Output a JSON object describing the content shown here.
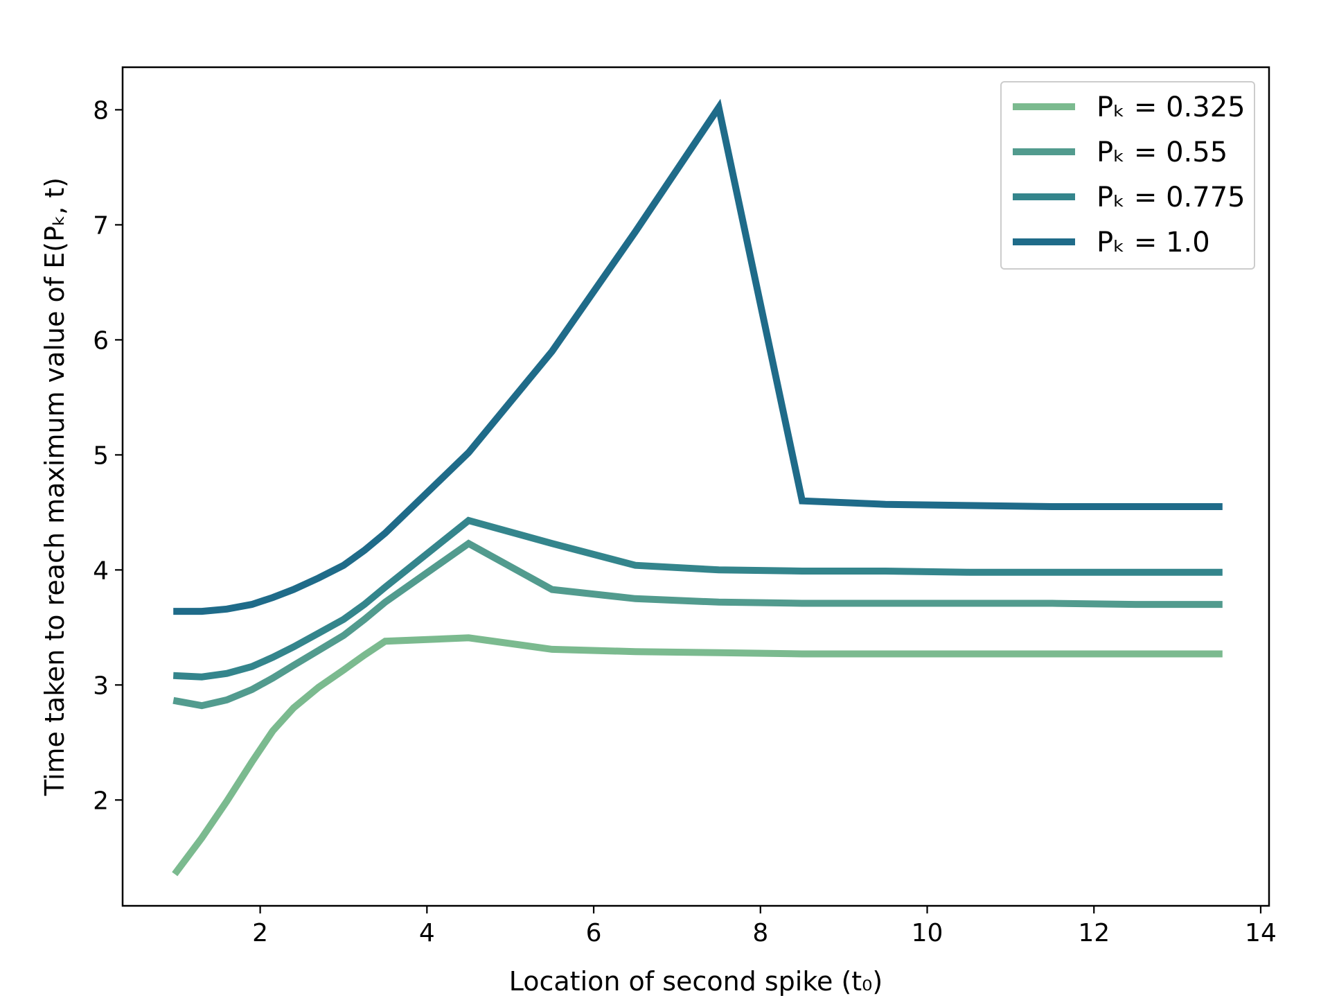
{
  "chart_data": {
    "type": "line",
    "xlabel": "Location of second spike (t₀)",
    "ylabel": "Time taken to reach maximum value of E(Pₖ, t)",
    "xlim": [
      0.35,
      14.1
    ],
    "ylim": [
      1.08,
      8.37
    ],
    "xticks": [
      2,
      4,
      6,
      8,
      10,
      12,
      14
    ],
    "yticks": [
      2,
      3,
      4,
      5,
      6,
      7,
      8
    ],
    "grid": false,
    "legend_position": "top-right",
    "series": [
      {
        "name": "Pₖ = 0.325",
        "color": "#7bba8f",
        "x": [
          1.0,
          1.3,
          1.6,
          1.9,
          2.15,
          2.4,
          2.7,
          3.0,
          3.25,
          3.5,
          4.5,
          5.5,
          6.5,
          7.5,
          8.5,
          9.5,
          10.5,
          11.5,
          12.5,
          13.5
        ],
        "y": [
          1.38,
          1.67,
          1.99,
          2.33,
          2.6,
          2.8,
          2.98,
          3.13,
          3.26,
          3.38,
          3.41,
          3.31,
          3.29,
          3.28,
          3.27,
          3.27,
          3.27,
          3.27,
          3.27,
          3.27
        ]
      },
      {
        "name": "Pₖ = 0.55",
        "color": "#529b8e",
        "x": [
          1.0,
          1.3,
          1.6,
          1.9,
          2.15,
          2.4,
          2.7,
          3.0,
          3.25,
          3.5,
          4.5,
          5.5,
          6.5,
          7.5,
          8.5,
          9.5,
          10.5,
          11.5,
          12.5,
          13.5
        ],
        "y": [
          2.86,
          2.82,
          2.87,
          2.96,
          3.06,
          3.17,
          3.3,
          3.43,
          3.57,
          3.72,
          4.23,
          3.83,
          3.75,
          3.72,
          3.71,
          3.71,
          3.71,
          3.71,
          3.7,
          3.7
        ]
      },
      {
        "name": "Pₖ = 0.775",
        "color": "#34858c",
        "x": [
          1.0,
          1.3,
          1.6,
          1.9,
          2.15,
          2.4,
          2.7,
          3.0,
          3.25,
          3.5,
          4.5,
          5.5,
          6.5,
          7.5,
          8.5,
          9.5,
          10.5,
          11.5,
          12.5,
          13.5
        ],
        "y": [
          3.08,
          3.07,
          3.1,
          3.16,
          3.24,
          3.33,
          3.45,
          3.57,
          3.7,
          3.85,
          4.43,
          4.23,
          4.04,
          4.0,
          3.99,
          3.99,
          3.98,
          3.98,
          3.98,
          3.98
        ]
      },
      {
        "name": "Pₖ = 1.0",
        "color": "#1f6b89",
        "x": [
          1.0,
          1.3,
          1.6,
          1.9,
          2.15,
          2.4,
          2.7,
          3.0,
          3.25,
          3.5,
          4.5,
          5.5,
          6.5,
          7.5,
          8.5,
          9.5,
          10.5,
          11.5,
          12.5,
          13.5
        ],
        "y": [
          3.64,
          3.64,
          3.66,
          3.7,
          3.76,
          3.83,
          3.93,
          4.04,
          4.17,
          4.32,
          5.02,
          5.9,
          6.94,
          8.02,
          4.6,
          4.57,
          4.56,
          4.55,
          4.55,
          4.55
        ]
      }
    ]
  }
}
